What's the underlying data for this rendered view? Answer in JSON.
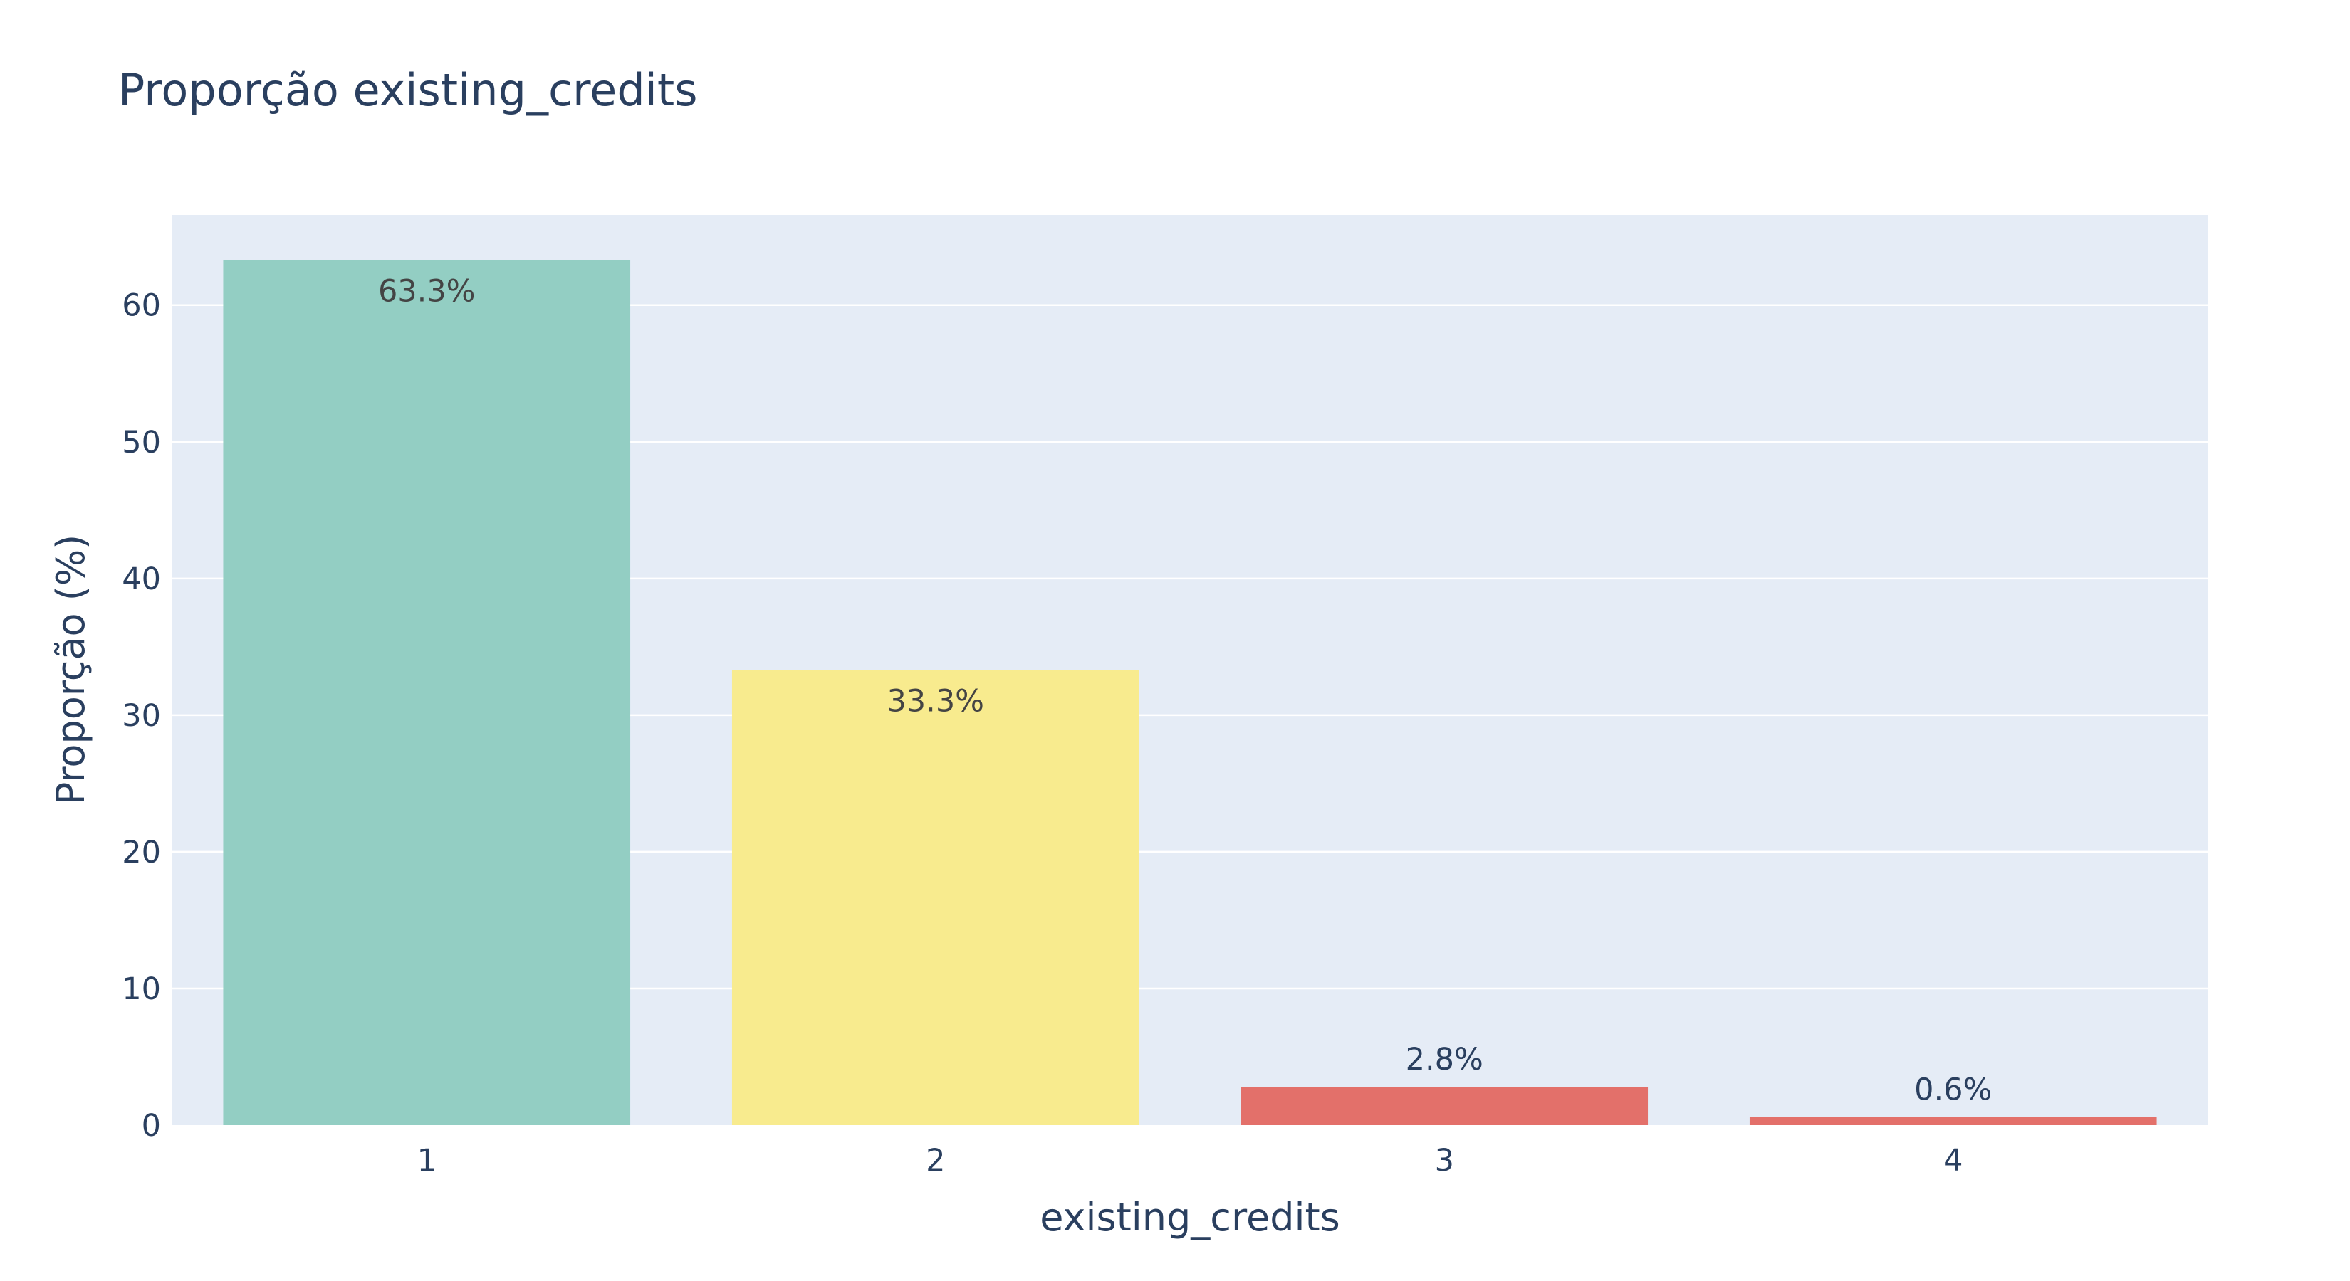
{
  "chart_data": {
    "type": "bar",
    "title": "Proporção existing_credits",
    "xlabel": "existing_credits",
    "ylabel": "Proporção (%)",
    "categories": [
      "1",
      "2",
      "3",
      "4"
    ],
    "values": [
      63.3,
      33.3,
      2.8,
      0.6
    ],
    "data_labels": [
      "63.3%",
      "33.3%",
      "2.8%",
      "0.6%"
    ],
    "label_positions": [
      "inside",
      "inside",
      "outside",
      "outside"
    ],
    "bar_colors": [
      "#93cec3",
      "#f8eb8e",
      "#e3706a",
      "#e3706a"
    ],
    "ylim": [
      0,
      66.6
    ],
    "yticks": [
      0,
      10,
      20,
      30,
      40,
      50,
      60
    ],
    "ytick_labels": [
      "0",
      "10",
      "20",
      "30",
      "40",
      "50",
      "60"
    ],
    "grid": true,
    "plot_background": "#e5ecf6",
    "grid_color": "#ffffff",
    "text_color": "#2a3f5f",
    "inside_label_color": "#444444"
  }
}
